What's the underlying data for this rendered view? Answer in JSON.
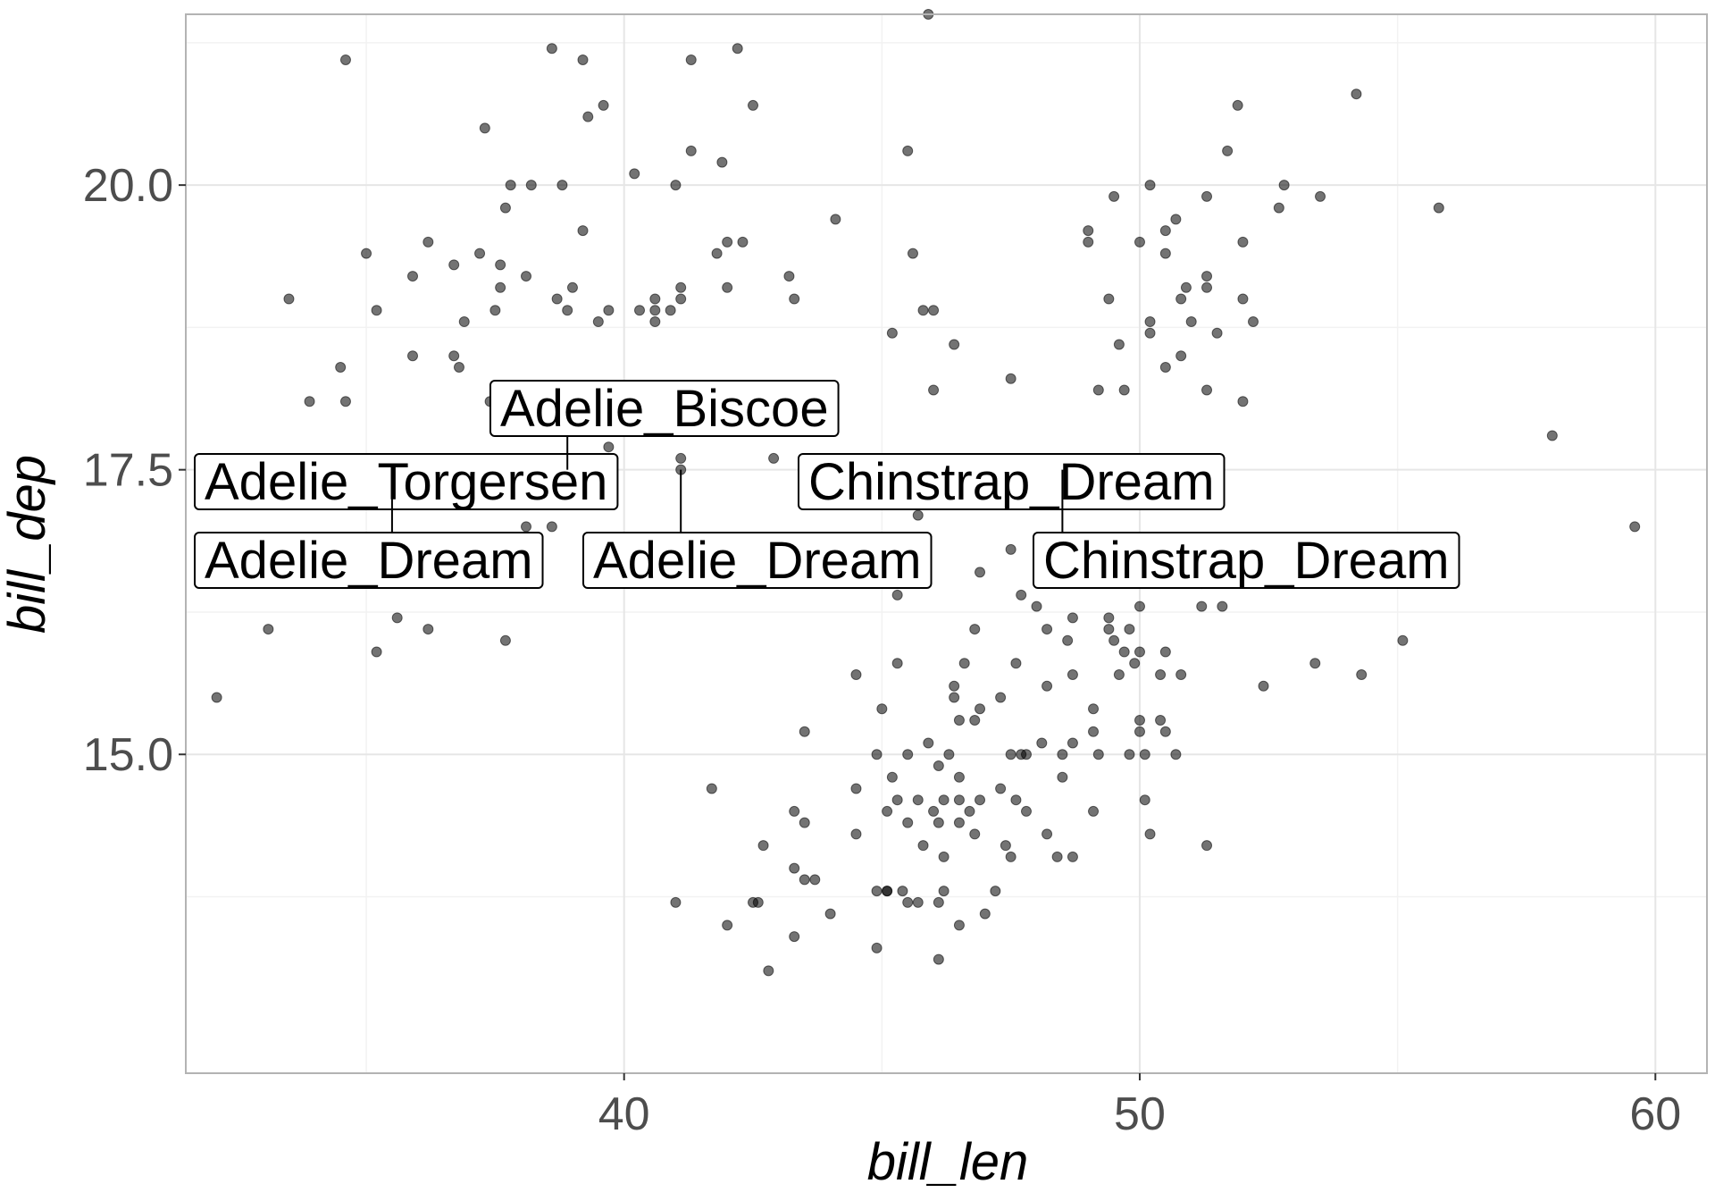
{
  "chart_data": {
    "type": "scatter",
    "title": "",
    "xlabel": "bill_len",
    "ylabel": "bill_dep",
    "xlim": [
      31.5,
      61.0
    ],
    "ylim": [
      12.2,
      21.5
    ],
    "x_ticks": [
      40,
      50,
      60
    ],
    "x_tick_labels": [
      "40",
      "50",
      "60"
    ],
    "y_ticks": [
      15.0,
      17.5,
      20.0
    ],
    "y_tick_labels": [
      "15.0",
      "17.5",
      "20.0"
    ],
    "grid": true,
    "point_color": "#000000",
    "point_opacity": 0.55,
    "points": [
      [
        34.6,
        21.1
      ],
      [
        38.6,
        21.2
      ],
      [
        39.2,
        21.1
      ],
      [
        41.3,
        21.1
      ],
      [
        42.2,
        21.2
      ],
      [
        45.9,
        21.5
      ],
      [
        54.2,
        20.8
      ],
      [
        42.5,
        20.7
      ],
      [
        39.6,
        20.7
      ],
      [
        39.3,
        20.6
      ],
      [
        37.3,
        20.5
      ],
      [
        51.9,
        20.7
      ],
      [
        41.3,
        20.3
      ],
      [
        45.5,
        20.3
      ],
      [
        51.7,
        20.3
      ],
      [
        40.2,
        20.1
      ],
      [
        41.9,
        20.2
      ],
      [
        37.8,
        20.0
      ],
      [
        38.2,
        20.0
      ],
      [
        38.8,
        20.0
      ],
      [
        41.0,
        20.0
      ],
      [
        50.2,
        20.0
      ],
      [
        52.8,
        20.0
      ],
      [
        53.5,
        19.9
      ],
      [
        49.5,
        19.9
      ],
      [
        51.3,
        19.9
      ],
      [
        37.7,
        19.8
      ],
      [
        52.7,
        19.8
      ],
      [
        55.8,
        19.8
      ],
      [
        44.1,
        19.7
      ],
      [
        50.7,
        19.7
      ],
      [
        39.2,
        19.6
      ],
      [
        49.0,
        19.6
      ],
      [
        50.5,
        19.6
      ],
      [
        36.2,
        19.5
      ],
      [
        49.0,
        19.5
      ],
      [
        42.0,
        19.5
      ],
      [
        42.3,
        19.5
      ],
      [
        50.0,
        19.5
      ],
      [
        52.0,
        19.5
      ],
      [
        35.0,
        19.4
      ],
      [
        37.2,
        19.4
      ],
      [
        41.8,
        19.4
      ],
      [
        45.6,
        19.4
      ],
      [
        50.5,
        19.4
      ],
      [
        36.7,
        19.3
      ],
      [
        37.6,
        19.3
      ],
      [
        33.5,
        19.0
      ],
      [
        35.9,
        19.2
      ],
      [
        38.1,
        19.2
      ],
      [
        43.2,
        19.2
      ],
      [
        51.3,
        19.2
      ],
      [
        37.6,
        19.1
      ],
      [
        39.0,
        19.1
      ],
      [
        41.1,
        19.1
      ],
      [
        42.0,
        19.1
      ],
      [
        50.9,
        19.1
      ],
      [
        51.3,
        19.1
      ],
      [
        38.7,
        19.0
      ],
      [
        40.6,
        19.0
      ],
      [
        41.1,
        19.0
      ],
      [
        43.3,
        19.0
      ],
      [
        49.4,
        19.0
      ],
      [
        50.8,
        19.0
      ],
      [
        52.0,
        19.0
      ],
      [
        35.2,
        18.9
      ],
      [
        37.5,
        18.9
      ],
      [
        38.9,
        18.9
      ],
      [
        39.7,
        18.9
      ],
      [
        40.3,
        18.9
      ],
      [
        40.6,
        18.9
      ],
      [
        40.9,
        18.9
      ],
      [
        45.8,
        18.9
      ],
      [
        46.0,
        18.9
      ],
      [
        36.9,
        18.8
      ],
      [
        39.5,
        18.8
      ],
      [
        40.6,
        18.8
      ],
      [
        50.2,
        18.8
      ],
      [
        51.0,
        18.8
      ],
      [
        52.2,
        18.8
      ],
      [
        45.2,
        18.7
      ],
      [
        50.2,
        18.7
      ],
      [
        51.5,
        18.7
      ],
      [
        49.6,
        18.6
      ],
      [
        46.4,
        18.6
      ],
      [
        35.9,
        18.5
      ],
      [
        36.7,
        18.5
      ],
      [
        50.8,
        18.5
      ],
      [
        34.5,
        18.4
      ],
      [
        36.8,
        18.4
      ],
      [
        50.5,
        18.4
      ],
      [
        47.5,
        18.3
      ],
      [
        41.1,
        18.2
      ],
      [
        46.0,
        18.2
      ],
      [
        49.2,
        18.2
      ],
      [
        49.7,
        18.2
      ],
      [
        51.3,
        18.2
      ],
      [
        33.9,
        18.1
      ],
      [
        34.6,
        18.1
      ],
      [
        37.4,
        18.1
      ],
      [
        38.1,
        18.1
      ],
      [
        41.1,
        18.1
      ],
      [
        43.4,
        18.1
      ],
      [
        52.0,
        18.1
      ],
      [
        41.6,
        18.0
      ],
      [
        40.8,
        17.9
      ],
      [
        39.6,
        17.9
      ],
      [
        58.0,
        17.8
      ],
      [
        39.7,
        17.7
      ],
      [
        42.9,
        17.6
      ],
      [
        41.1,
        17.6
      ],
      [
        35.5,
        17.5
      ],
      [
        38.9,
        17.5
      ],
      [
        41.1,
        17.5
      ],
      [
        46.2,
        17.5
      ],
      [
        48.5,
        17.5
      ],
      [
        47.1,
        17.3
      ],
      [
        38.7,
        17.2
      ],
      [
        45.7,
        17.1
      ],
      [
        59.6,
        17.0
      ],
      [
        38.6,
        17.0
      ],
      [
        38.1,
        17.0
      ],
      [
        35.7,
        16.9
      ],
      [
        37.0,
        16.9
      ],
      [
        37.2,
        16.8
      ],
      [
        41.0,
        16.8
      ],
      [
        47.5,
        16.8
      ],
      [
        49.8,
        16.8
      ],
      [
        39.5,
        16.7
      ],
      [
        42.5,
        16.7
      ],
      [
        35.9,
        16.6
      ],
      [
        36.4,
        16.6
      ],
      [
        41.0,
        16.6
      ],
      [
        43.2,
        16.6
      ],
      [
        45.3,
        16.6
      ],
      [
        46.9,
        16.6
      ],
      [
        37.0,
        16.5
      ],
      [
        38.1,
        16.5
      ],
      [
        51.2,
        16.5
      ],
      [
        45.3,
        16.4
      ],
      [
        47.7,
        16.4
      ],
      [
        51.2,
        16.3
      ],
      [
        51.6,
        16.3
      ],
      [
        48.0,
        16.3
      ],
      [
        50.0,
        16.3
      ],
      [
        35.6,
        16.2
      ],
      [
        48.7,
        16.2
      ],
      [
        49.4,
        16.2
      ],
      [
        33.1,
        16.1
      ],
      [
        36.2,
        16.1
      ],
      [
        46.8,
        16.1
      ],
      [
        48.2,
        16.1
      ],
      [
        49.4,
        16.1
      ],
      [
        49.8,
        16.1
      ],
      [
        48.6,
        16.0
      ],
      [
        49.5,
        16.0
      ],
      [
        55.1,
        16.0
      ],
      [
        37.7,
        16.0
      ],
      [
        35.2,
        15.9
      ],
      [
        49.7,
        15.9
      ],
      [
        50.0,
        15.9
      ],
      [
        50.5,
        15.9
      ],
      [
        47.6,
        15.8
      ],
      [
        49.9,
        15.8
      ],
      [
        45.3,
        15.8
      ],
      [
        46.6,
        15.8
      ],
      [
        53.4,
        15.8
      ],
      [
        44.5,
        15.7
      ],
      [
        48.7,
        15.7
      ],
      [
        49.6,
        15.7
      ],
      [
        50.4,
        15.7
      ],
      [
        50.8,
        15.7
      ],
      [
        54.3,
        15.7
      ],
      [
        46.4,
        15.6
      ],
      [
        48.2,
        15.6
      ],
      [
        52.4,
        15.6
      ],
      [
        32.1,
        15.5
      ],
      [
        46.4,
        15.5
      ],
      [
        47.3,
        15.5
      ],
      [
        45.0,
        15.4
      ],
      [
        46.9,
        15.4
      ],
      [
        49.1,
        15.4
      ],
      [
        46.5,
        15.3
      ],
      [
        46.8,
        15.3
      ],
      [
        50.0,
        15.3
      ],
      [
        50.4,
        15.3
      ],
      [
        43.5,
        15.2
      ],
      [
        50.0,
        15.2
      ],
      [
        49.1,
        15.2
      ],
      [
        50.5,
        15.2
      ],
      [
        45.9,
        15.1
      ],
      [
        48.1,
        15.1
      ],
      [
        48.7,
        15.1
      ],
      [
        44.9,
        15.0
      ],
      [
        45.5,
        15.0
      ],
      [
        46.3,
        15.0
      ],
      [
        47.5,
        15.0
      ],
      [
        47.7,
        15.0
      ],
      [
        47.8,
        15.0
      ],
      [
        48.5,
        15.0
      ],
      [
        49.2,
        15.0
      ],
      [
        49.8,
        15.0
      ],
      [
        50.1,
        15.0
      ],
      [
        50.7,
        15.0
      ],
      [
        46.1,
        14.9
      ],
      [
        45.2,
        14.8
      ],
      [
        46.5,
        14.8
      ],
      [
        48.5,
        14.8
      ],
      [
        41.7,
        14.7
      ],
      [
        44.5,
        14.7
      ],
      [
        47.3,
        14.7
      ],
      [
        45.3,
        14.6
      ],
      [
        45.7,
        14.6
      ],
      [
        46.2,
        14.6
      ],
      [
        46.5,
        14.6
      ],
      [
        46.9,
        14.6
      ],
      [
        47.6,
        14.6
      ],
      [
        50.1,
        14.6
      ],
      [
        43.3,
        14.5
      ],
      [
        45.1,
        14.5
      ],
      [
        46.0,
        14.5
      ],
      [
        46.7,
        14.5
      ],
      [
        47.8,
        14.5
      ],
      [
        49.1,
        14.5
      ],
      [
        43.5,
        14.4
      ],
      [
        45.5,
        14.4
      ],
      [
        46.1,
        14.4
      ],
      [
        46.5,
        14.4
      ],
      [
        44.5,
        14.3
      ],
      [
        46.8,
        14.3
      ],
      [
        48.2,
        14.3
      ],
      [
        50.2,
        14.3
      ],
      [
        45.8,
        14.2
      ],
      [
        47.4,
        14.2
      ],
      [
        42.7,
        14.2
      ],
      [
        51.3,
        14.2
      ],
      [
        46.2,
        14.1
      ],
      [
        47.5,
        14.1
      ],
      [
        48.4,
        14.1
      ],
      [
        48.7,
        14.1
      ],
      [
        43.3,
        14.0
      ],
      [
        43.5,
        13.9
      ],
      [
        43.7,
        13.9
      ],
      [
        45.1,
        13.8
      ],
      [
        46.2,
        13.8
      ],
      [
        47.2,
        13.8
      ],
      [
        45.1,
        13.8
      ],
      [
        45.4,
        13.8
      ],
      [
        44.9,
        13.8
      ],
      [
        46.1,
        13.7
      ],
      [
        45.5,
        13.7
      ],
      [
        45.7,
        13.7
      ],
      [
        41.0,
        13.7
      ],
      [
        42.5,
        13.7
      ],
      [
        42.6,
        13.7
      ],
      [
        47.0,
        13.6
      ],
      [
        44.0,
        13.6
      ],
      [
        42.0,
        13.5
      ],
      [
        46.5,
        13.5
      ],
      [
        43.3,
        13.4
      ],
      [
        44.9,
        13.3
      ],
      [
        46.1,
        13.2
      ],
      [
        42.8,
        13.1
      ]
    ],
    "annotations": [
      {
        "text": "Adelie_Torgersen",
        "x": 35.5,
        "y": 17.5
      },
      {
        "text": "Adelie_Biscoe",
        "x": 38.9,
        "y": 17.5
      },
      {
        "text": "Adelie_Dream",
        "x": 35.5,
        "y": 17.5
      },
      {
        "text": "Adelie_Dream",
        "x": 41.1,
        "y": 17.5
      },
      {
        "text": "Chinstrap_Dream",
        "x": 46.2,
        "y": 17.5
      },
      {
        "text": "Chinstrap_Dream",
        "x": 48.5,
        "y": 17.5
      }
    ]
  }
}
